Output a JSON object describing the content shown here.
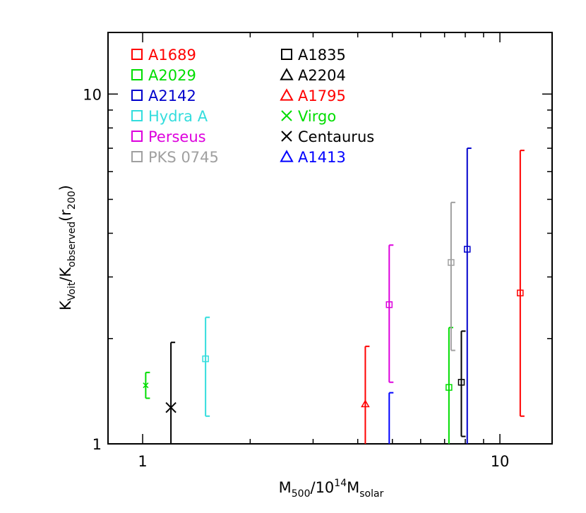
{
  "chart_data": {
    "type": "scatter",
    "title": "",
    "x_axis": {
      "label_parts": [
        "M",
        "500",
        "/10",
        "14",
        "M",
        "solar"
      ],
      "scale": "log",
      "range": [
        0.8,
        14
      ],
      "ticks": [
        {
          "value": 1,
          "label": "1"
        },
        {
          "value": 10,
          "label": "10"
        }
      ]
    },
    "y_axis": {
      "label_parts": [
        "K",
        "Voit",
        "/K",
        "observed",
        "(r",
        "200",
        ")"
      ],
      "scale": "log",
      "range": [
        1,
        15
      ],
      "ticks": [
        {
          "value": 1,
          "label": "1"
        },
        {
          "value": 10,
          "label": "10"
        }
      ]
    },
    "legend_position": "top-left",
    "series": [
      {
        "name": "A1689",
        "marker": "square",
        "color": "#ff0000",
        "legend_col": 0,
        "x": 11.4,
        "y": 2.7,
        "y_low": 1.2,
        "y_high": 6.9
      },
      {
        "name": "A2029",
        "marker": "square",
        "color": "#00dd00",
        "legend_col": 0,
        "x": 7.2,
        "y": 1.45,
        "y_low": 0.5,
        "y_high": 2.15
      },
      {
        "name": "A2142",
        "marker": "square",
        "color": "#0000cc",
        "legend_col": 0,
        "x": 8.1,
        "y": 3.6,
        "y_low": 0.5,
        "y_high": 7.0
      },
      {
        "name": "Hydra A",
        "marker": "square",
        "color": "#33dddd",
        "legend_col": 0,
        "x": 1.5,
        "y": 1.75,
        "y_low": 1.2,
        "y_high": 2.3
      },
      {
        "name": "Perseus",
        "marker": "square",
        "color": "#dd00dd",
        "legend_col": 0,
        "x": 4.9,
        "y": 2.5,
        "y_low": 1.5,
        "y_high": 3.7
      },
      {
        "name": "PKS 0745",
        "marker": "square",
        "color": "#a0a0a0",
        "legend_col": 0,
        "x": 7.3,
        "y": 3.3,
        "y_low": 1.85,
        "y_high": 4.9
      },
      {
        "name": "A1835",
        "marker": "square",
        "color": "#000000",
        "legend_col": 1,
        "x": 7.8,
        "y": 1.5,
        "y_low": 1.05,
        "y_high": 2.1
      },
      {
        "name": "A2204",
        "marker": "triangle",
        "color": "#000000",
        "legend_col": 1
      },
      {
        "name": "A1795",
        "marker": "triangle",
        "color": "#ff0000",
        "legend_col": 1,
        "x": 4.2,
        "y": 1.3,
        "y_low": 0.5,
        "y_high": 1.9
      },
      {
        "name": "Virgo",
        "marker": "x",
        "color": "#00dd00",
        "legend_col": 1,
        "x": 1.02,
        "y": 1.47,
        "y_low": 1.35,
        "y_high": 1.6
      },
      {
        "name": "Centaurus",
        "marker": "x",
        "color": "#000000",
        "legend_col": 1,
        "x": 1.2,
        "y": 1.27,
        "y_low": 0.5,
        "y_high": 1.95
      },
      {
        "name": "A1413",
        "marker": "triangle",
        "color": "#0000ff",
        "legend_col": 1,
        "x": 4.9,
        "y": 0.5,
        "y_low": 0.5,
        "y_high": 1.4
      }
    ]
  }
}
